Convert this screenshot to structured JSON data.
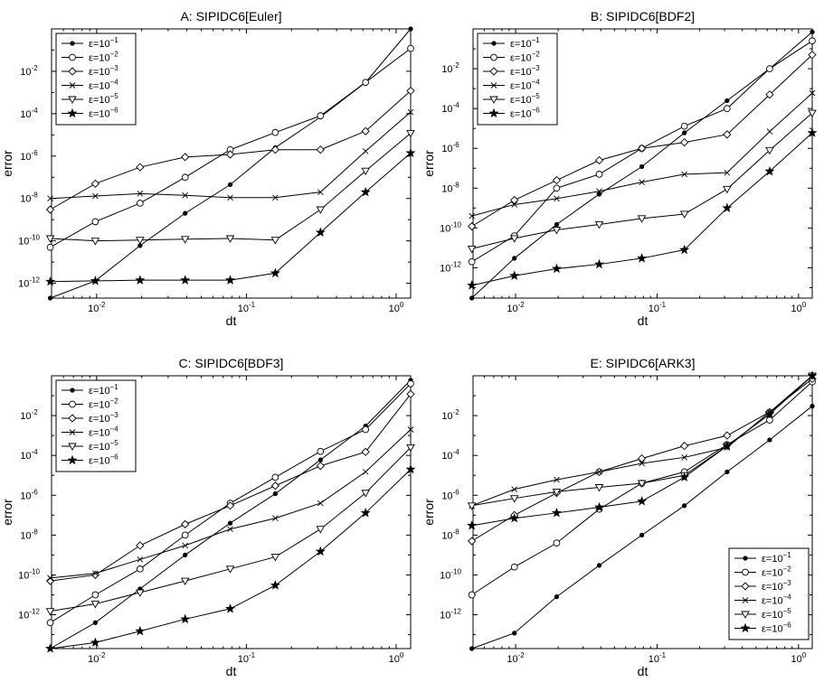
{
  "chart_data": [
    {
      "type": "line",
      "title": "A: SIPIDC6[Euler]",
      "xlabel": "dt",
      "ylabel": "error",
      "xscale": "log",
      "yscale": "log",
      "xlim": [
        0.005,
        1.25
      ],
      "ylim": [
        2e-13,
        1
      ],
      "xticks": [
        {
          "base": "10",
          "exp": "-2"
        },
        {
          "base": "10",
          "exp": "-1"
        },
        {
          "base": "10",
          "exp": "0"
        }
      ],
      "yticks": [
        {
          "base": "10",
          "exp": "-12"
        },
        {
          "base": "10",
          "exp": "-10"
        },
        {
          "base": "10",
          "exp": "-8"
        },
        {
          "base": "10",
          "exp": "-6"
        },
        {
          "base": "10",
          "exp": "-4"
        },
        {
          "base": "10",
          "exp": "-2"
        }
      ],
      "legend_position": "top-left",
      "x": [
        0.0049,
        0.0098,
        0.0195,
        0.039,
        0.078,
        0.156,
        0.3125,
        0.625,
        1.25
      ],
      "series": [
        {
          "name_base": "ε=10",
          "name_exp": "−1",
          "marker": "dot",
          "values": [
            2e-13,
            1.3e-12,
            6e-11,
            2e-09,
            4.5e-08,
            2.5e-06,
            7e-05,
            0.003,
            1
          ]
        },
        {
          "name_base": "ε=10",
          "name_exp": "−2",
          "marker": "circle",
          "values": [
            5e-11,
            8e-10,
            6e-09,
            1e-07,
            2e-06,
            1.3e-05,
            8e-05,
            0.003,
            0.12
          ]
        },
        {
          "name_base": "ε=10",
          "name_exp": "−3",
          "marker": "diamond",
          "values": [
            3e-09,
            5e-08,
            3e-07,
            9e-07,
            1.2e-06,
            2e-06,
            2e-06,
            1.5e-05,
            0.0012
          ]
        },
        {
          "name_base": "ε=10",
          "name_exp": "−4",
          "marker": "x",
          "values": [
            1e-08,
            1.3e-08,
            1.7e-08,
            1.4e-08,
            1.1e-08,
            1.1e-08,
            2e-08,
            1.7e-06,
            0.00012
          ]
        },
        {
          "name_base": "ε=10",
          "name_exp": "−5",
          "marker": "triangle-down",
          "values": [
            1.3e-10,
            1e-10,
            1.1e-10,
            1.2e-10,
            1.3e-10,
            1.1e-10,
            3e-09,
            2e-07,
            1.2e-05
          ]
        },
        {
          "name_base": "ε=10",
          "name_exp": "−6",
          "marker": "star",
          "values": [
            1.2e-12,
            1.3e-12,
            1.4e-12,
            1.4e-12,
            1.4e-12,
            3e-12,
            2.5e-10,
            2e-08,
            1.4e-06
          ]
        }
      ]
    },
    {
      "type": "line",
      "title": "B: SIPIDC6[BDF2]",
      "xlabel": "dt",
      "ylabel": "error",
      "xscale": "log",
      "yscale": "log",
      "xlim": [
        0.005,
        1.25
      ],
      "ylim": [
        3e-14,
        1
      ],
      "xticks": [
        {
          "base": "10",
          "exp": "-2"
        },
        {
          "base": "10",
          "exp": "-1"
        },
        {
          "base": "10",
          "exp": "0"
        }
      ],
      "yticks": [
        {
          "base": "10",
          "exp": "-12"
        },
        {
          "base": "10",
          "exp": "-10"
        },
        {
          "base": "10",
          "exp": "-8"
        },
        {
          "base": "10",
          "exp": "-6"
        },
        {
          "base": "10",
          "exp": "-4"
        },
        {
          "base": "10",
          "exp": "-2"
        }
      ],
      "legend_position": "top-left",
      "x": [
        0.0049,
        0.0098,
        0.0195,
        0.039,
        0.078,
        0.156,
        0.3125,
        0.625,
        1.25
      ],
      "series": [
        {
          "name_base": "ε=10",
          "name_exp": "−1",
          "marker": "dot",
          "values": [
            3e-14,
            3e-12,
            1.5e-10,
            5e-09,
            1.2e-07,
            6e-06,
            0.00025,
            0.01,
            0.7
          ]
        },
        {
          "name_base": "ε=10",
          "name_exp": "−2",
          "marker": "circle",
          "values": [
            2e-12,
            4e-11,
            1e-08,
            5e-08,
            1e-06,
            1.3e-05,
            0.0001,
            0.01,
            0.25
          ]
        },
        {
          "name_base": "ε=10",
          "name_exp": "−3",
          "marker": "diamond",
          "values": [
            1.2e-10,
            2.5e-09,
            2.5e-08,
            2.5e-07,
            1e-06,
            2e-06,
            5e-06,
            0.0005,
            0.05
          ]
        },
        {
          "name_base": "ε=10",
          "name_exp": "−4",
          "marker": "x",
          "values": [
            4e-10,
            1.5e-09,
            3e-09,
            7e-09,
            2e-08,
            5e-08,
            6e-08,
            7e-06,
            0.0006
          ]
        },
        {
          "name_base": "ε=10",
          "name_exp": "−5",
          "marker": "triangle-down",
          "values": [
            9e-12,
            3e-11,
            8e-11,
            1.5e-10,
            3e-10,
            5e-10,
            9e-09,
            8e-07,
            6e-05
          ]
        },
        {
          "name_base": "ε=10",
          "name_exp": "−6",
          "marker": "star",
          "values": [
            1.3e-13,
            4e-13,
            9e-13,
            1.5e-12,
            3e-12,
            8e-12,
            1e-09,
            7e-08,
            6e-06
          ]
        }
      ]
    },
    {
      "type": "line",
      "title": "C: SIPIDC6[BDF3]",
      "xlabel": "dt",
      "ylabel": "error",
      "xscale": "log",
      "yscale": "log",
      "xlim": [
        0.005,
        1.25
      ],
      "ylim": [
        2e-14,
        1
      ],
      "xticks": [
        {
          "base": "10",
          "exp": "-2"
        },
        {
          "base": "10",
          "exp": "-1"
        },
        {
          "base": "10",
          "exp": "0"
        }
      ],
      "yticks": [
        {
          "base": "10",
          "exp": "-12"
        },
        {
          "base": "10",
          "exp": "-10"
        },
        {
          "base": "10",
          "exp": "-8"
        },
        {
          "base": "10",
          "exp": "-6"
        },
        {
          "base": "10",
          "exp": "-4"
        },
        {
          "base": "10",
          "exp": "-2"
        }
      ],
      "legend_position": "top-left",
      "x": [
        0.0049,
        0.0098,
        0.0195,
        0.039,
        0.078,
        0.156,
        0.3125,
        0.625,
        1.25
      ],
      "series": [
        {
          "name_base": "ε=10",
          "name_exp": "−1",
          "marker": "dot",
          "values": [
            2e-14,
            4e-13,
            2e-11,
            1e-09,
            4e-08,
            1.2e-06,
            6e-05,
            0.003,
            0.6
          ]
        },
        {
          "name_base": "ε=10",
          "name_exp": "−2",
          "marker": "circle",
          "values": [
            4e-13,
            1e-11,
            2e-10,
            1e-08,
            4e-07,
            8e-06,
            0.00016,
            0.002,
            0.4
          ]
        },
        {
          "name_base": "ε=10",
          "name_exp": "−3",
          "marker": "diamond",
          "values": [
            5e-11,
            1e-10,
            3e-09,
            3.5e-08,
            3e-07,
            3e-06,
            3e-05,
            0.00015,
            0.12
          ]
        },
        {
          "name_base": "ε=10",
          "name_exp": "−4",
          "marker": "x",
          "values": [
            7e-11,
            1.2e-10,
            6e-10,
            3e-09,
            2e-08,
            7e-08,
            4e-07,
            1.5e-05,
            0.002
          ]
        },
        {
          "name_base": "ε=10",
          "name_exp": "−5",
          "marker": "triangle-down",
          "values": [
            1.5e-12,
            3.5e-12,
            1.3e-11,
            5e-11,
            2e-10,
            8e-10,
            2e-08,
            1.3e-06,
            0.00025
          ]
        },
        {
          "name_base": "ε=10",
          "name_exp": "−6",
          "marker": "star",
          "values": [
            2e-14,
            4e-14,
            1.5e-13,
            6e-13,
            2e-12,
            3e-11,
            1.5e-09,
            1.3e-07,
            2e-05
          ]
        }
      ]
    },
    {
      "type": "line",
      "title": "E: SIPIDC6[ARK3]",
      "xlabel": "dt",
      "ylabel": "error",
      "xscale": "log",
      "yscale": "log",
      "xlim": [
        0.005,
        1.25
      ],
      "ylim": [
        2e-14,
        1
      ],
      "xticks": [
        {
          "base": "10",
          "exp": "-2"
        },
        {
          "base": "10",
          "exp": "-1"
        },
        {
          "base": "10",
          "exp": "0"
        }
      ],
      "yticks": [
        {
          "base": "10",
          "exp": "-12"
        },
        {
          "base": "10",
          "exp": "-10"
        },
        {
          "base": "10",
          "exp": "-8"
        },
        {
          "base": "10",
          "exp": "-6"
        },
        {
          "base": "10",
          "exp": "-4"
        },
        {
          "base": "10",
          "exp": "-2"
        }
      ],
      "legend_position": "bottom-right",
      "x": [
        0.0049,
        0.0098,
        0.0195,
        0.039,
        0.078,
        0.156,
        0.3125,
        0.625,
        1.25
      ],
      "series": [
        {
          "name_base": "ε=10",
          "name_exp": "−1",
          "marker": "dot",
          "values": [
            2e-14,
            1.2e-13,
            8e-12,
            3e-10,
            1e-08,
            3e-07,
            1.5e-05,
            0.0006,
            0.03
          ]
        },
        {
          "name_base": "ε=10",
          "name_exp": "−2",
          "marker": "circle",
          "values": [
            1e-11,
            2.5e-10,
            4e-09,
            2e-07,
            4e-06,
            1.5e-05,
            0.00035,
            0.006,
            0.5
          ]
        },
        {
          "name_base": "ε=10",
          "name_exp": "−3",
          "marker": "diamond",
          "values": [
            5e-09,
            1e-07,
            1.3e-06,
            1.5e-05,
            7e-05,
            0.0003,
            0.001,
            0.015,
            0.7
          ]
        },
        {
          "name_base": "ε=10",
          "name_exp": "−4",
          "marker": "x",
          "values": [
            3e-07,
            2e-06,
            6e-06,
            1.5e-05,
            4e-05,
            8e-05,
            0.00025,
            0.015,
            1
          ]
        },
        {
          "name_base": "ε=10",
          "name_exp": "−5",
          "marker": "triangle-down",
          "values": [
            3e-07,
            7e-07,
            1.5e-06,
            2.5e-06,
            4e-06,
            1e-05,
            0.0003,
            0.012,
            1
          ]
        },
        {
          "name_base": "ε=10",
          "name_exp": "−6",
          "marker": "star",
          "values": [
            3e-08,
            7e-08,
            1.3e-07,
            2.5e-07,
            5e-07,
            8e-06,
            0.0003,
            0.012,
            1
          ]
        }
      ]
    }
  ]
}
